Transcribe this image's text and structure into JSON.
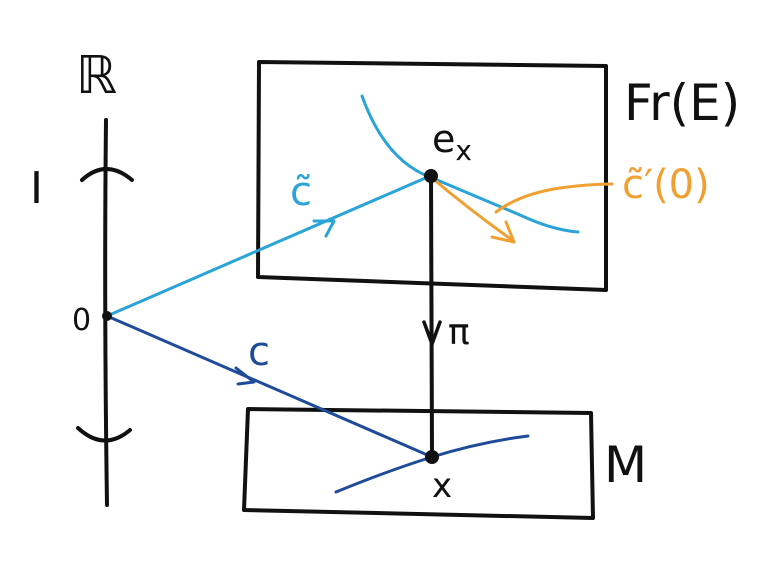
{
  "labels": {
    "reals": "ℝ",
    "interval": "I",
    "origin": "0",
    "frame_bundle": "Fr(E)",
    "manifold": "M",
    "lift_curve": "c̃",
    "curve": "c",
    "frame_point": "e",
    "frame_point_subscript": "x",
    "base_point": "x",
    "projection": "π",
    "lift_velocity": "c̃′(0)"
  },
  "colors": {
    "ink": "#111111",
    "lift_blue": "#2aa3d6",
    "curve_navy": "#1f4b99",
    "velocity_orange": "#f0a030"
  }
}
